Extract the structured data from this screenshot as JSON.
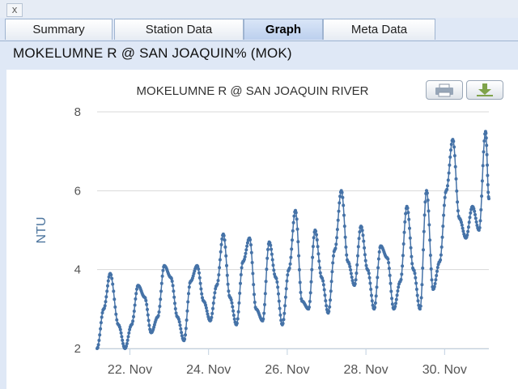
{
  "window": {
    "close_label": "x"
  },
  "tabs": [
    {
      "label": "Summary",
      "active": false
    },
    {
      "label": "Station Data",
      "active": false
    },
    {
      "label": "Graph",
      "active": true
    },
    {
      "label": "Meta Data",
      "active": false
    }
  ],
  "station_title": "MOKELUMNE R @ SAN JOAQUIN% (MOK)",
  "toolbar": {
    "print_icon": "printer-icon",
    "download_icon": "download-icon"
  },
  "colors": {
    "series": "#4572a7",
    "grid": "#d8d8d8",
    "axis_text": "#555555",
    "ylabel": "#4d759e"
  },
  "chart_data": {
    "type": "line",
    "title": "MOKELUMNE R @ SAN JOAQUIN RIVER",
    "xlabel": "",
    "ylabel": "NTU",
    "x_range": [
      "2016-11-21 04:00",
      "2016-12-01 03:00"
    ],
    "ylim": [
      2,
      8
    ],
    "yticks": [
      2,
      4,
      6,
      8
    ],
    "xticks": [
      {
        "date": "2016-11-22",
        "label": "22. Nov"
      },
      {
        "date": "2016-11-24",
        "label": "24. Nov"
      },
      {
        "date": "2016-11-26",
        "label": "26. Nov"
      },
      {
        "date": "2016-11-28",
        "label": "28. Nov"
      },
      {
        "date": "2016-11-30",
        "label": "30. Nov"
      }
    ],
    "grid": true,
    "legend": "none",
    "series": [
      {
        "points": [
          [
            "2016-11-21 04:00",
            2.0
          ],
          [
            "2016-11-21 08:00",
            3.0
          ],
          [
            "2016-11-21 12:00",
            3.9
          ],
          [
            "2016-11-21 17:00",
            2.6
          ],
          [
            "2016-11-21 21:00",
            2.0
          ],
          [
            "2016-11-22 01:00",
            2.6
          ],
          [
            "2016-11-22 05:00",
            3.6
          ],
          [
            "2016-11-22 09:00",
            3.3
          ],
          [
            "2016-11-22 13:00",
            2.4
          ],
          [
            "2016-11-22 17:00",
            2.8
          ],
          [
            "2016-11-22 21:00",
            4.1
          ],
          [
            "2016-11-23 01:00",
            3.8
          ],
          [
            "2016-11-23 05:00",
            2.8
          ],
          [
            "2016-11-23 09:00",
            2.2
          ],
          [
            "2016-11-23 13:00",
            3.7
          ],
          [
            "2016-11-23 17:00",
            4.1
          ],
          [
            "2016-11-23 21:00",
            3.2
          ],
          [
            "2016-11-24 01:00",
            2.7
          ],
          [
            "2016-11-24 05:00",
            3.6
          ],
          [
            "2016-11-24 09:00",
            4.9
          ],
          [
            "2016-11-24 13:00",
            3.3
          ],
          [
            "2016-11-24 17:00",
            2.6
          ],
          [
            "2016-11-24 21:00",
            4.2
          ],
          [
            "2016-11-25 01:00",
            4.8
          ],
          [
            "2016-11-25 05:00",
            3.0
          ],
          [
            "2016-11-25 09:00",
            2.7
          ],
          [
            "2016-11-25 13:00",
            4.7
          ],
          [
            "2016-11-25 17:00",
            3.8
          ],
          [
            "2016-11-25 21:00",
            2.6
          ],
          [
            "2016-11-26 01:00",
            4.0
          ],
          [
            "2016-11-26 05:00",
            5.5
          ],
          [
            "2016-11-26 09:00",
            3.2
          ],
          [
            "2016-11-26 13:00",
            3.0
          ],
          [
            "2016-11-26 17:00",
            5.0
          ],
          [
            "2016-11-26 21:00",
            3.8
          ],
          [
            "2016-11-27 01:00",
            2.9
          ],
          [
            "2016-11-27 05:00",
            4.5
          ],
          [
            "2016-11-27 09:00",
            6.0
          ],
          [
            "2016-11-27 13:00",
            4.2
          ],
          [
            "2016-11-27 17:00",
            3.6
          ],
          [
            "2016-11-27 21:00",
            5.1
          ],
          [
            "2016-11-28 01:00",
            4.0
          ],
          [
            "2016-11-28 05:00",
            3.0
          ],
          [
            "2016-11-28 09:00",
            4.6
          ],
          [
            "2016-11-28 13:00",
            4.3
          ],
          [
            "2016-11-28 17:00",
            3.0
          ],
          [
            "2016-11-28 21:00",
            3.7
          ],
          [
            "2016-11-29 01:00",
            5.6
          ],
          [
            "2016-11-29 05:00",
            4.0
          ],
          [
            "2016-11-29 09:00",
            3.0
          ],
          [
            "2016-11-29 13:00",
            6.0
          ],
          [
            "2016-11-29 17:00",
            3.5
          ],
          [
            "2016-11-29 21:00",
            4.2
          ],
          [
            "2016-11-30 01:00",
            6.0
          ],
          [
            "2016-11-30 05:00",
            7.3
          ],
          [
            "2016-11-30 09:00",
            5.3
          ],
          [
            "2016-11-30 13:00",
            4.8
          ],
          [
            "2016-11-30 17:00",
            5.6
          ],
          [
            "2016-11-30 21:00",
            5.0
          ],
          [
            "2016-12-01 01:00",
            7.5
          ],
          [
            "2016-12-01 03:00",
            5.8
          ]
        ]
      }
    ]
  }
}
